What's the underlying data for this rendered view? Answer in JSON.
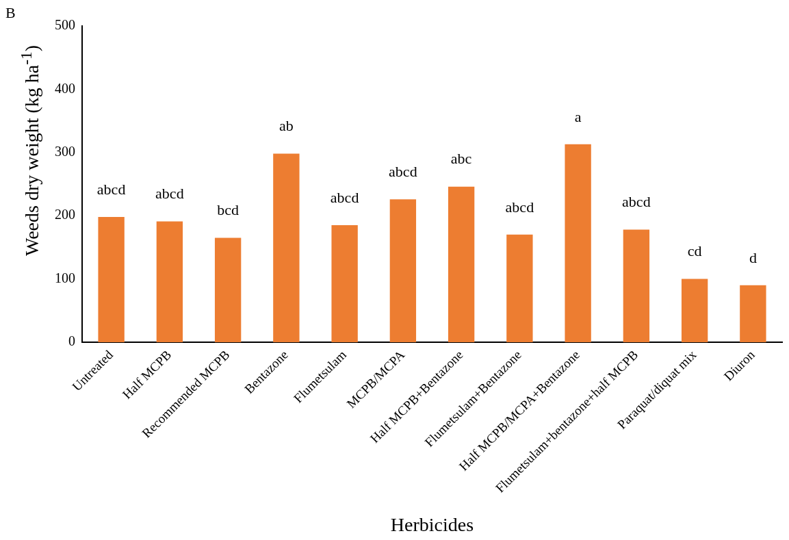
{
  "chart_data": {
    "type": "bar",
    "xlabel": "Herbicides",
    "ylabel": "Weeds dry weight (kg ha$^{-1}$)",
    "categories": [
      "Untreated",
      "Half MCPB",
      "Recommended MCPB",
      "Bentazone",
      "Flumetsulam",
      "MCPB/MCPA",
      "Half MCPB+Bentazone",
      "Flumetsulam+Bentazone",
      "Half MCPB/MCPA+Bentazone",
      "Flumetsulam+bentazone+half MCPB",
      "Paraquat/diquat mix",
      "Diuron"
    ],
    "values": [
      198,
      191,
      165,
      298,
      185,
      226,
      246,
      170,
      313,
      178,
      100,
      90
    ],
    "color": "#ed7d31",
    "ylim": [
      0,
      500
    ],
    "yticks": [
      0,
      100,
      200,
      300,
      400,
      500
    ],
    "grid": false,
    "legend": false,
    "annotations": [
      "B",
      {
        "text": "abcd",
        "x": "Untreated",
        "y": 198
      },
      {
        "text": "abcd",
        "x": "Half MCPB",
        "y": 191
      },
      {
        "text": "bcd",
        "x": "Recommended MCPB",
        "y": 165
      },
      {
        "text": "ab",
        "x": "Bentazone",
        "y": 298
      },
      {
        "text": "abcd",
        "x": "Flumetsulam",
        "y": 185
      },
      {
        "text": "abcd",
        "x": "MCPB/MCPA",
        "y": 226
      },
      {
        "text": "abc",
        "x": "Half MCPB+Bentazone",
        "y": 246
      },
      {
        "text": "abcd",
        "x": "Flumetsulam+Bentazone",
        "y": 170
      },
      {
        "text": "a",
        "x": "Half MCPB/MCPA+Bentazone",
        "y": 313
      },
      {
        "text": "abcd",
        "x": "Flumetsulam+bentazone+half MCPB",
        "y": 178
      },
      {
        "text": "cd",
        "x": "Paraquat/diquat mix",
        "y": 100
      },
      {
        "text": "d",
        "x": "Diuron",
        "y": 90
      }
    ]
  }
}
